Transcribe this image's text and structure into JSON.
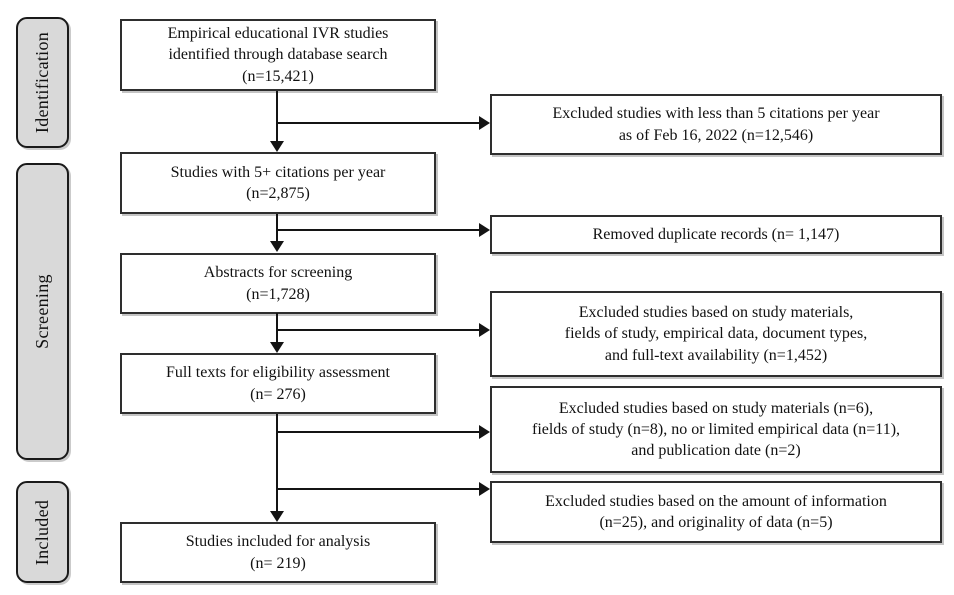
{
  "stages": [
    {
      "label": "Identification"
    },
    {
      "label": "Screening"
    },
    {
      "label": "Included"
    }
  ],
  "flow_boxes": [
    {
      "text": "Empirical educational IVR studies\nidentified through database search\n(n=15,421)"
    },
    {
      "text": "Studies with 5+ citations per year\n(n=2,875)"
    },
    {
      "text": "Abstracts for screening\n(n=1,728)"
    },
    {
      "text": "Full texts for eligibility assessment\n(n= 276)"
    },
    {
      "text": "Studies included for analysis\n(n= 219)"
    }
  ],
  "excluded_boxes": [
    {
      "text": "Excluded studies with less than 5 citations per year\nas of Feb 16, 2022 (n=12,546)"
    },
    {
      "text": "Removed duplicate records (n= 1,147)"
    },
    {
      "text": "Excluded studies based on study materials,\nfields of study, empirical data, document types,\nand full-text availability (n=1,452)"
    },
    {
      "text": "Excluded studies based on study materials (n=6),\nfields of study (n=8), no or limited empirical data (n=11),\nand publication date (n=2)"
    },
    {
      "text": "Excluded studies based on the amount of information\n(n=25), and originality of data (n=5)"
    }
  ],
  "colors": {
    "stage_fill": "#d9d9d9",
    "line": "#141414",
    "box_border": "#2e2e2e",
    "background": "#ffffff"
  }
}
